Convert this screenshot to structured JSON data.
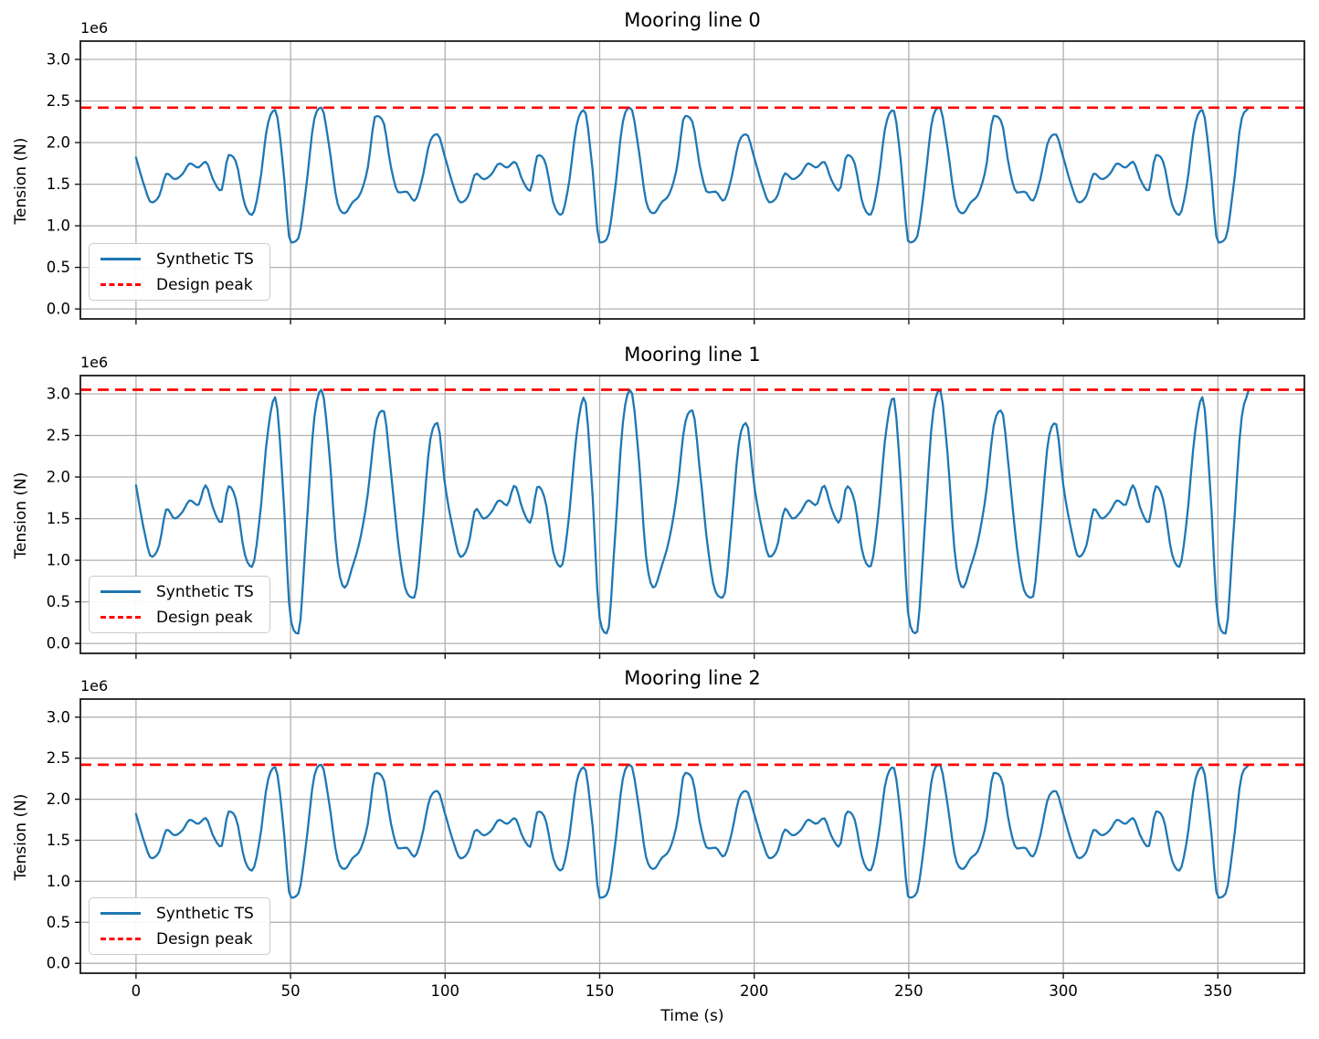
{
  "figure": {
    "background": "#ffffff"
  },
  "colors": {
    "series": "#1f77b4",
    "design_peak": "#ff0000",
    "grid": "#b0b0b0",
    "spine": "#1a1a1a",
    "text": "#000000",
    "legend_border": "#cccccc"
  },
  "chart_data": [
    {
      "type": "line",
      "title": "Mooring line 0",
      "ylabel": "Tension (N)",
      "offset_text": "1e6",
      "y_unit_multiplier": 1000000,
      "xlim": [
        -18,
        378
      ],
      "ylim_1e6": [
        -0.12,
        3.22
      ],
      "grid": true,
      "x_ticks": [
        0,
        50,
        100,
        150,
        200,
        250,
        300,
        350
      ],
      "x_tick_labels_shown": false,
      "y_ticks": [
        0.0,
        0.5,
        1.0,
        1.5,
        2.0,
        2.5,
        3.0
      ],
      "y_tick_labels": [
        "0.0",
        "0.5",
        "1.0",
        "1.5",
        "2.0",
        "2.5",
        "3.0"
      ],
      "legend_position": "lower left",
      "series": [
        {
          "name": "Synthetic TS",
          "style": "solid",
          "color": "#1f77b4",
          "x_start": 0,
          "x_step": 2.5,
          "x_end": 360,
          "y_1e6": [
            1.82,
            1.5,
            1.28,
            1.36,
            1.63,
            1.56,
            1.62,
            1.75,
            1.7,
            1.77,
            1.55,
            1.42,
            1.85,
            1.75,
            1.28,
            1.13,
            1.5,
            2.2,
            2.39,
            1.75,
            0.8,
            0.85,
            1.45,
            2.25,
            2.42,
            1.95,
            1.3,
            1.15,
            1.28,
            1.38,
            1.7,
            2.32,
            2.25,
            1.7,
            1.4,
            1.41,
            1.3,
            1.55,
            2.0,
            2.1,
            1.82,
            1.5,
            1.28,
            1.36,
            1.63,
            1.56,
            1.62,
            1.75,
            1.7,
            1.77,
            1.55,
            1.42,
            1.85,
            1.75,
            1.28,
            1.13,
            1.5,
            2.2,
            2.39,
            1.75,
            0.8,
            0.85,
            1.45,
            2.25,
            2.42,
            1.95,
            1.3,
            1.15,
            1.28,
            1.38,
            1.7,
            2.32,
            2.25,
            1.7,
            1.4,
            1.41,
            1.3,
            1.55,
            2.0,
            2.1,
            1.82,
            1.5,
            1.28,
            1.36,
            1.63,
            1.56,
            1.62,
            1.75,
            1.7,
            1.77,
            1.55,
            1.42,
            1.85,
            1.75,
            1.28,
            1.13,
            1.5,
            2.2,
            2.39,
            1.75,
            0.8,
            0.85,
            1.45,
            2.25,
            2.42,
            1.95,
            1.3,
            1.15,
            1.28,
            1.38,
            1.7,
            2.32,
            2.25,
            1.7,
            1.4,
            1.41,
            1.3,
            1.55,
            2.0,
            2.1,
            1.82,
            1.5,
            1.28,
            1.36,
            1.63,
            1.56,
            1.62,
            1.75,
            1.7,
            1.77,
            1.55,
            1.42,
            1.85,
            1.75,
            1.28,
            1.13,
            1.5,
            2.2,
            2.39,
            1.75,
            0.8,
            0.85,
            1.45,
            2.25,
            2.42
          ]
        },
        {
          "name": "Design peak",
          "style": "dashed",
          "color": "#ff0000",
          "hline_y_1e6": 2.42
        }
      ]
    },
    {
      "type": "line",
      "title": "Mooring line 1",
      "ylabel": "Tension (N)",
      "offset_text": "1e6",
      "y_unit_multiplier": 1000000,
      "xlim": [
        -18,
        378
      ],
      "ylim_1e6": [
        -0.12,
        3.22
      ],
      "grid": true,
      "x_ticks": [
        0,
        50,
        100,
        150,
        200,
        250,
        300,
        350
      ],
      "x_tick_labels_shown": false,
      "y_ticks": [
        0.0,
        0.5,
        1.0,
        1.5,
        2.0,
        2.5,
        3.0
      ],
      "y_tick_labels": [
        "0.0",
        "0.5",
        "1.0",
        "1.5",
        "2.0",
        "2.5",
        "3.0"
      ],
      "legend_position": "lower left",
      "series": [
        {
          "name": "Synthetic TS",
          "style": "solid",
          "color": "#1f77b4",
          "x_start": 0,
          "x_step": 2.5,
          "x_end": 360,
          "y_1e6": [
            1.9,
            1.38,
            1.04,
            1.18,
            1.62,
            1.5,
            1.58,
            1.72,
            1.66,
            1.9,
            1.62,
            1.45,
            1.89,
            1.7,
            1.1,
            0.92,
            1.5,
            2.5,
            2.96,
            1.9,
            0.3,
            0.12,
            1.3,
            2.65,
            3.05,
            2.3,
            1.05,
            0.67,
            0.92,
            1.25,
            1.8,
            2.62,
            2.8,
            2.05,
            1.15,
            0.62,
            0.55,
            1.35,
            2.4,
            2.65,
            1.9,
            1.38,
            1.04,
            1.18,
            1.62,
            1.5,
            1.58,
            1.72,
            1.66,
            1.9,
            1.62,
            1.45,
            1.89,
            1.7,
            1.1,
            0.92,
            1.5,
            2.5,
            2.96,
            1.9,
            0.3,
            0.12,
            1.3,
            2.65,
            3.05,
            2.3,
            1.05,
            0.67,
            0.92,
            1.25,
            1.8,
            2.62,
            2.8,
            2.05,
            1.15,
            0.62,
            0.55,
            1.35,
            2.4,
            2.65,
            1.9,
            1.38,
            1.04,
            1.18,
            1.62,
            1.5,
            1.58,
            1.72,
            1.66,
            1.9,
            1.62,
            1.45,
            1.89,
            1.7,
            1.1,
            0.92,
            1.5,
            2.5,
            2.96,
            1.9,
            0.3,
            0.12,
            1.3,
            2.65,
            3.05,
            2.3,
            1.05,
            0.67,
            0.92,
            1.25,
            1.8,
            2.62,
            2.8,
            2.05,
            1.15,
            0.62,
            0.55,
            1.35,
            2.4,
            2.65,
            1.9,
            1.38,
            1.04,
            1.18,
            1.62,
            1.5,
            1.58,
            1.72,
            1.66,
            1.9,
            1.62,
            1.45,
            1.89,
            1.7,
            1.1,
            0.92,
            1.5,
            2.5,
            2.96,
            1.9,
            0.3,
            0.12,
            1.3,
            2.65,
            3.05
          ]
        },
        {
          "name": "Design peak",
          "style": "dashed",
          "color": "#ff0000",
          "hline_y_1e6": 3.05
        }
      ]
    },
    {
      "type": "line",
      "title": "Mooring line 2",
      "xlabel": "Time (s)",
      "ylabel": "Tension (N)",
      "offset_text": "1e6",
      "y_unit_multiplier": 1000000,
      "xlim": [
        -18,
        378
      ],
      "ylim_1e6": [
        -0.12,
        3.22
      ],
      "grid": true,
      "x_ticks": [
        0,
        50,
        100,
        150,
        200,
        250,
        300,
        350
      ],
      "x_tick_labels_shown": true,
      "x_tick_labels": [
        "0",
        "50",
        "100",
        "150",
        "200",
        "250",
        "300",
        "350"
      ],
      "y_ticks": [
        0.0,
        0.5,
        1.0,
        1.5,
        2.0,
        2.5,
        3.0
      ],
      "y_tick_labels": [
        "0.0",
        "0.5",
        "1.0",
        "1.5",
        "2.0",
        "2.5",
        "3.0"
      ],
      "legend_position": "lower left",
      "series": [
        {
          "name": "Synthetic TS",
          "style": "solid",
          "color": "#1f77b4",
          "x_start": 0,
          "x_step": 2.5,
          "x_end": 360,
          "y_1e6": [
            1.82,
            1.5,
            1.28,
            1.36,
            1.63,
            1.56,
            1.62,
            1.75,
            1.7,
            1.77,
            1.55,
            1.42,
            1.85,
            1.75,
            1.28,
            1.13,
            1.5,
            2.2,
            2.39,
            1.75,
            0.8,
            0.85,
            1.45,
            2.25,
            2.42,
            1.95,
            1.3,
            1.15,
            1.28,
            1.38,
            1.7,
            2.32,
            2.25,
            1.7,
            1.4,
            1.41,
            1.3,
            1.55,
            2.0,
            2.1,
            1.82,
            1.5,
            1.28,
            1.36,
            1.63,
            1.56,
            1.62,
            1.75,
            1.7,
            1.77,
            1.55,
            1.42,
            1.85,
            1.75,
            1.28,
            1.13,
            1.5,
            2.2,
            2.39,
            1.75,
            0.8,
            0.85,
            1.45,
            2.25,
            2.42,
            1.95,
            1.3,
            1.15,
            1.28,
            1.38,
            1.7,
            2.32,
            2.25,
            1.7,
            1.4,
            1.41,
            1.3,
            1.55,
            2.0,
            2.1,
            1.82,
            1.5,
            1.28,
            1.36,
            1.63,
            1.56,
            1.62,
            1.75,
            1.7,
            1.77,
            1.55,
            1.42,
            1.85,
            1.75,
            1.28,
            1.13,
            1.5,
            2.2,
            2.39,
            1.75,
            0.8,
            0.85,
            1.45,
            2.25,
            2.42,
            1.95,
            1.3,
            1.15,
            1.28,
            1.38,
            1.7,
            2.32,
            2.25,
            1.7,
            1.4,
            1.41,
            1.3,
            1.55,
            2.0,
            2.1,
            1.82,
            1.5,
            1.28,
            1.36,
            1.63,
            1.56,
            1.62,
            1.75,
            1.7,
            1.77,
            1.55,
            1.42,
            1.85,
            1.75,
            1.28,
            1.13,
            1.5,
            2.2,
            2.39,
            1.75,
            0.8,
            0.85,
            1.45,
            2.25,
            2.42
          ]
        },
        {
          "name": "Design peak",
          "style": "dashed",
          "color": "#ff0000",
          "hline_y_1e6": 2.42
        }
      ]
    }
  ]
}
